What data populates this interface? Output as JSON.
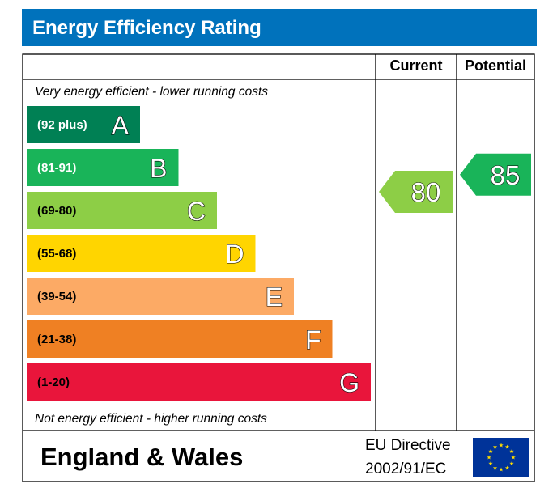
{
  "header": {
    "title": "Energy Efficiency Rating"
  },
  "columns": {
    "current": "Current",
    "potential": "Potential"
  },
  "notes": {
    "top": "Very energy efficient - lower running costs",
    "bottom": "Not energy efficient - higher running costs"
  },
  "chart_data": {
    "type": "bar",
    "title": "Energy Efficiency Rating",
    "categories": [
      "A",
      "B",
      "C",
      "D",
      "E",
      "F",
      "G"
    ],
    "ranges": [
      "(92 plus)",
      "(81-91)",
      "(69-80)",
      "(55-68)",
      "(39-54)",
      "(21-38)",
      "(1-20)"
    ],
    "colors": [
      "#008054",
      "#19b459",
      "#8dce46",
      "#ffd500",
      "#fcaa65",
      "#ef8023",
      "#e9153b"
    ],
    "range_text_colors": [
      "#ffffff",
      "#ffffff",
      "#000000",
      "#000000",
      "#000000",
      "#000000",
      "#000000"
    ],
    "current": {
      "value": 80,
      "band": "C",
      "color": "#8dce46"
    },
    "potential": {
      "value": 85,
      "band": "B",
      "color": "#19b459"
    }
  },
  "footer": {
    "region": "England & Wales",
    "directive_line1": "EU Directive",
    "directive_line2": "2002/91/EC",
    "flag_color": "#003399"
  }
}
